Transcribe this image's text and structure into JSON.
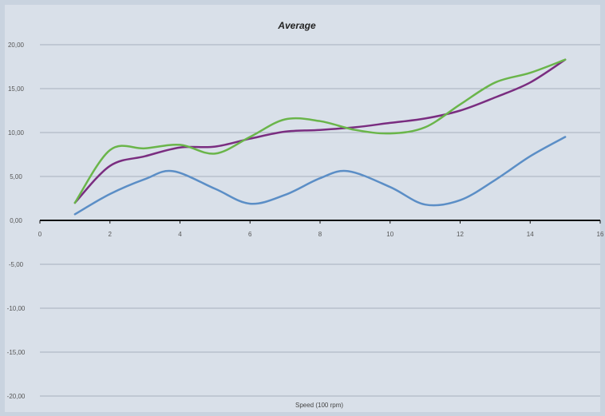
{
  "chart_data": {
    "type": "line",
    "title": "Average",
    "xlabel": "Speed (100 rpm)",
    "ylabel": "",
    "xlim": [
      0,
      16
    ],
    "ylim": [
      -20,
      20
    ],
    "x_ticks": [
      "0",
      "2",
      "4",
      "6",
      "8",
      "10",
      "12",
      "14",
      "16"
    ],
    "y_ticks": [
      "20,00",
      "15,00",
      "10,00",
      "5,00",
      "0,00",
      "-5,00",
      "-10,00",
      "-15,00",
      "-20,00"
    ],
    "grid": true,
    "legend": "none",
    "series": [
      {
        "color": "#5b8ec6",
        "x": [
          1,
          2,
          3,
          3.8,
          5,
          6,
          7,
          8,
          8.8,
          10,
          11,
          12,
          13,
          14,
          15
        ],
        "y": [
          0.7,
          3.0,
          4.7,
          5.6,
          3.6,
          1.9,
          2.9,
          4.8,
          5.6,
          3.8,
          1.8,
          2.3,
          4.6,
          7.3,
          9.5
        ]
      },
      {
        "color": "#7a2d80",
        "x": [
          1,
          2,
          3,
          4,
          5,
          6,
          7,
          8,
          9,
          10,
          11,
          12,
          13,
          14,
          15
        ],
        "y": [
          2.0,
          6.2,
          7.3,
          8.3,
          8.4,
          9.3,
          10.1,
          10.3,
          10.6,
          11.1,
          11.6,
          12.5,
          14.0,
          15.7,
          18.3
        ]
      },
      {
        "color": "#6ab54a",
        "x": [
          1,
          2,
          3,
          4,
          5,
          6,
          7,
          8,
          9,
          10,
          11,
          12,
          13,
          14,
          15
        ],
        "y": [
          2.0,
          8.0,
          8.2,
          8.6,
          7.6,
          9.5,
          11.5,
          11.3,
          10.3,
          9.9,
          10.6,
          13.2,
          15.7,
          16.8,
          18.3
        ]
      }
    ]
  }
}
